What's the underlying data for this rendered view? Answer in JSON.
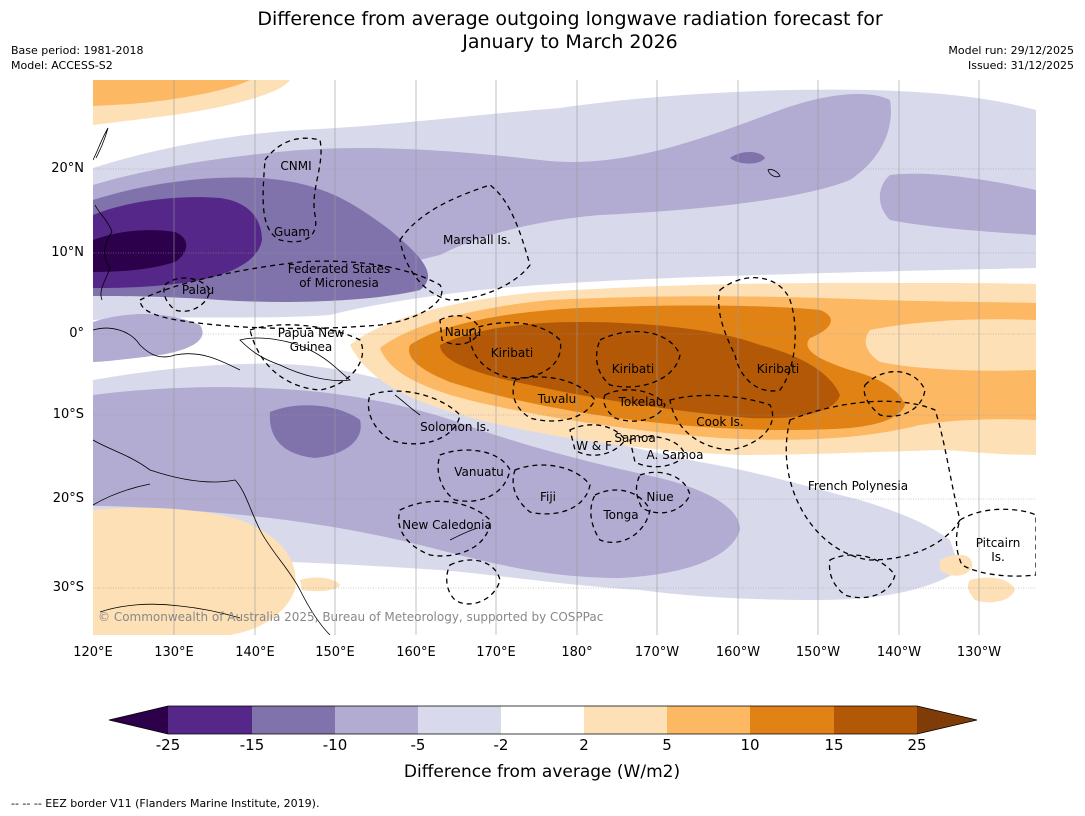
{
  "title_line1": "Difference from average outgoing longwave radiation forecast for",
  "title_line2": "January to March 2026",
  "meta": {
    "base_period": "Base period: 1981-2018",
    "model": "Model: ACCESS-S2",
    "model_run": "Model run: 29/12/2025",
    "issued": "Issued: 31/12/2025"
  },
  "map": {
    "lat_labels": [
      "20°N",
      "10°N",
      "0°",
      "10°S",
      "20°S",
      "30°S"
    ],
    "lon_labels": [
      "120°E",
      "130°E",
      "140°E",
      "150°E",
      "160°E",
      "170°E",
      "180°",
      "170°W",
      "160°W",
      "150°W",
      "140°W",
      "130°W"
    ],
    "places": {
      "cnmi": "CNMI",
      "guam": "Guam",
      "marshall": "Marshall Is.",
      "fsm_line1": "Federated States",
      "fsm_line2": "of Micronesia",
      "palau": "Palau",
      "png_line1": "Papua New",
      "png_line2": "Guinea",
      "nauru": "Nauru",
      "kiribati_w": "Kiribati",
      "kiribati_c": "Kiribati",
      "kiribati_e": "Kiribati",
      "tuvalu": "Tuvalu",
      "tokelau": "Tokelau",
      "cook": "Cook Is.",
      "solomon": "Solomon Is.",
      "samoa": "Samoa",
      "wf": "W & F",
      "asamoa": "A. Samoa",
      "vanuatu": "Vanuatu",
      "fiji": "Fiji",
      "niue": "Niue",
      "tonga": "Tonga",
      "frpoly": "French Polynesia",
      "newcal": "New Caledonia",
      "pitcairn_line1": "Pitcairn",
      "pitcairn_line2": "Is."
    },
    "copyright": "© Commonwealth of Australia 2025, Bureau of Meteorology, supported by COSPPac"
  },
  "colorbar": {
    "ticks": [
      "-25",
      "-15",
      "-10",
      "-5",
      "-2",
      "2",
      "5",
      "10",
      "15",
      "25"
    ],
    "colors": [
      "#2d004b",
      "#542788",
      "#8073ac",
      "#b2abd2",
      "#d8daeb",
      "#ffffff",
      "#fee0b6",
      "#fdb863",
      "#e08214",
      "#b35806",
      "#7f3b08"
    ],
    "label": "Difference from average (W/m2)"
  },
  "footer": "--  --  -- EEZ border V11 (Flanders Marine Institute, 2019)."
}
